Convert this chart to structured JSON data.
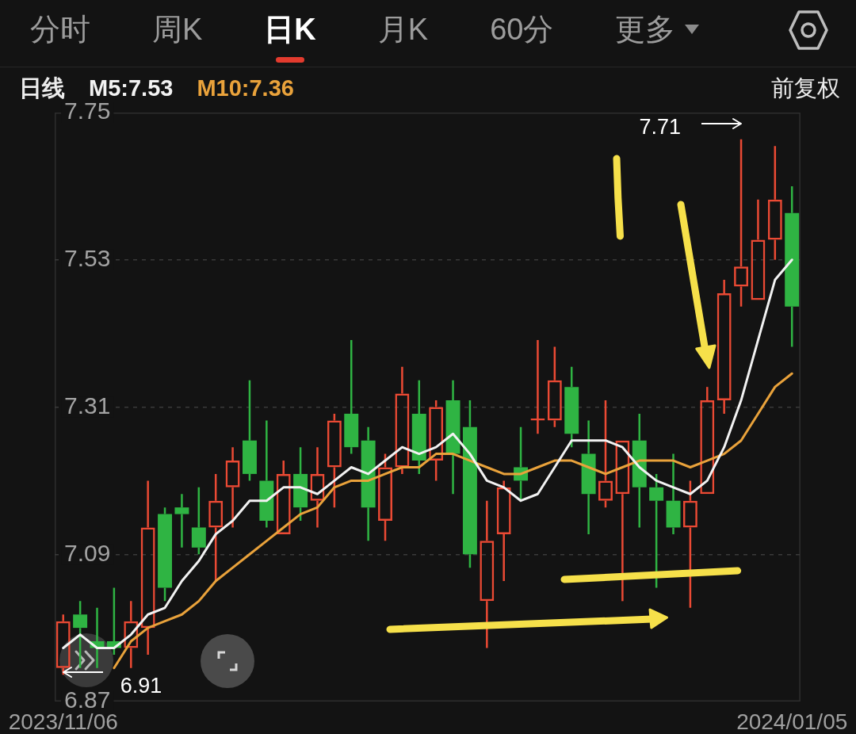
{
  "chart_data": {
    "type": "candlestick",
    "legend_title": "日线",
    "categories": [
      "2023/11/06",
      null,
      null,
      null,
      null,
      null,
      null,
      null,
      null,
      null,
      null,
      null,
      null,
      null,
      null,
      null,
      null,
      null,
      null,
      null,
      null,
      null,
      null,
      null,
      null,
      null,
      null,
      null,
      null,
      null,
      null,
      null,
      null,
      null,
      null,
      null,
      null,
      null,
      null,
      null,
      null,
      null,
      null,
      "2024/01/05"
    ],
    "ohlc": [
      [
        6.92,
        7.0,
        6.91,
        6.99
      ],
      [
        7.0,
        7.02,
        6.92,
        6.98
      ],
      [
        6.96,
        7.01,
        6.92,
        6.95
      ],
      [
        6.96,
        7.04,
        6.94,
        6.95
      ],
      [
        6.95,
        7.02,
        6.92,
        6.99
      ],
      [
        6.98,
        7.2,
        6.94,
        7.13
      ],
      [
        7.15,
        7.16,
        7.02,
        7.04
      ],
      [
        7.16,
        7.18,
        7.1,
        7.15
      ],
      [
        7.13,
        7.19,
        7.09,
        7.1
      ],
      [
        7.13,
        7.21,
        7.05,
        7.17
      ],
      [
        7.19,
        7.25,
        7.13,
        7.23
      ],
      [
        7.26,
        7.35,
        7.2,
        7.21
      ],
      [
        7.2,
        7.29,
        7.13,
        7.14
      ],
      [
        7.12,
        7.23,
        7.12,
        7.21
      ],
      [
        7.21,
        7.25,
        7.14,
        7.16
      ],
      [
        7.17,
        7.25,
        7.13,
        7.21
      ],
      [
        7.22,
        7.3,
        7.16,
        7.29
      ],
      [
        7.3,
        7.41,
        7.24,
        7.25
      ],
      [
        7.26,
        7.28,
        7.11,
        7.16
      ],
      [
        7.14,
        7.24,
        7.11,
        7.22
      ],
      [
        7.22,
        7.37,
        7.21,
        7.33
      ],
      [
        7.3,
        7.35,
        7.21,
        7.23
      ],
      [
        7.23,
        7.32,
        7.2,
        7.31
      ],
      [
        7.32,
        7.35,
        7.18,
        7.24
      ],
      [
        7.28,
        7.32,
        7.07,
        7.09
      ],
      [
        7.02,
        7.17,
        6.95,
        7.11
      ],
      [
        7.12,
        7.2,
        7.05,
        7.19
      ],
      [
        7.22,
        7.28,
        7.17,
        7.2
      ],
      [
        7.29,
        7.41,
        7.27,
        7.29
      ],
      [
        7.29,
        7.4,
        7.28,
        7.35
      ],
      [
        7.34,
        7.37,
        7.25,
        7.27
      ],
      [
        7.24,
        7.29,
        7.12,
        7.18
      ],
      [
        7.17,
        7.32,
        7.16,
        7.2
      ],
      [
        7.18,
        7.26,
        7.02,
        7.26
      ],
      [
        7.26,
        7.3,
        7.13,
        7.19
      ],
      [
        7.19,
        7.21,
        7.04,
        7.17
      ],
      [
        7.17,
        7.24,
        7.12,
        7.13
      ],
      [
        7.13,
        7.2,
        7.01,
        7.17
      ],
      [
        7.18,
        7.34,
        7.18,
        7.32
      ],
      [
        7.32,
        7.5,
        7.3,
        7.48
      ],
      [
        7.49,
        7.71,
        7.46,
        7.52
      ],
      [
        7.47,
        7.62,
        7.47,
        7.56
      ],
      [
        7.56,
        7.7,
        7.53,
        7.62
      ],
      [
        7.6,
        7.64,
        7.4,
        7.46
      ]
    ],
    "colors": [
      "#eb4a34",
      "#2fb443",
      "#2fb443",
      "#2fb443",
      "#eb4a34",
      "#eb4a34",
      "#2fb443",
      "#2fb443",
      "#2fb443",
      "#eb4a34",
      "#eb4a34",
      "#2fb443",
      "#2fb443",
      "#eb4a34",
      "#2fb443",
      "#eb4a34",
      "#eb4a34",
      "#2fb443",
      "#2fb443",
      "#eb4a34",
      "#eb4a34",
      "#2fb443",
      "#eb4a34",
      "#2fb443",
      "#2fb443",
      "#eb4a34",
      "#eb4a34",
      "#2fb443",
      "#eb4a34",
      "#eb4a34",
      "#2fb443",
      "#2fb443",
      "#eb4a34",
      "#eb4a34",
      "#2fb443",
      "#2fb443",
      "#2fb443",
      "#eb4a34",
      "#eb4a34",
      "#eb4a34",
      "#eb4a34",
      "#eb4a34",
      "#eb4a34",
      "#2fb443"
    ],
    "series": [
      {
        "name": "M5:7.53",
        "type": "line",
        "color": "#f2f2f2",
        "values": [
          6.95,
          6.97,
          6.95,
          6.95,
          6.97,
          7.0,
          7.01,
          7.05,
          7.08,
          7.12,
          7.14,
          7.17,
          7.17,
          7.19,
          7.19,
          7.18,
          7.2,
          7.22,
          7.21,
          7.23,
          7.25,
          7.24,
          7.25,
          7.27,
          7.24,
          7.2,
          7.19,
          7.17,
          7.18,
          7.22,
          7.26,
          7.26,
          7.26,
          7.25,
          7.22,
          7.2,
          7.19,
          7.18,
          7.2,
          7.25,
          7.32,
          7.41,
          7.5,
          7.53
        ]
      },
      {
        "name": "M10:7.36",
        "type": "line",
        "color": "#e9a23b",
        "values": [
          null,
          null,
          null,
          6.92,
          6.96,
          6.98,
          6.99,
          7.0,
          7.02,
          7.05,
          7.07,
          7.09,
          7.11,
          7.13,
          7.15,
          7.16,
          7.19,
          7.2,
          7.2,
          7.21,
          7.22,
          7.22,
          7.24,
          7.24,
          7.23,
          7.22,
          7.21,
          7.21,
          7.22,
          7.23,
          7.23,
          7.22,
          7.21,
          7.22,
          7.23,
          7.23,
          7.23,
          7.22,
          7.23,
          7.24,
          7.26,
          7.3,
          7.34,
          7.36
        ]
      }
    ],
    "ylim": [
      6.87,
      7.75
    ],
    "yticks": [
      6.87,
      7.09,
      7.31,
      7.53,
      7.75
    ],
    "grid": "y",
    "legend": "top left",
    "marker": "none",
    "line_style": "solid",
    "annotations": [
      "分时",
      "周K",
      "日K",
      "月K",
      "60分",
      "更多",
      "前复权",
      "7.71",
      "6.91"
    ]
  }
}
